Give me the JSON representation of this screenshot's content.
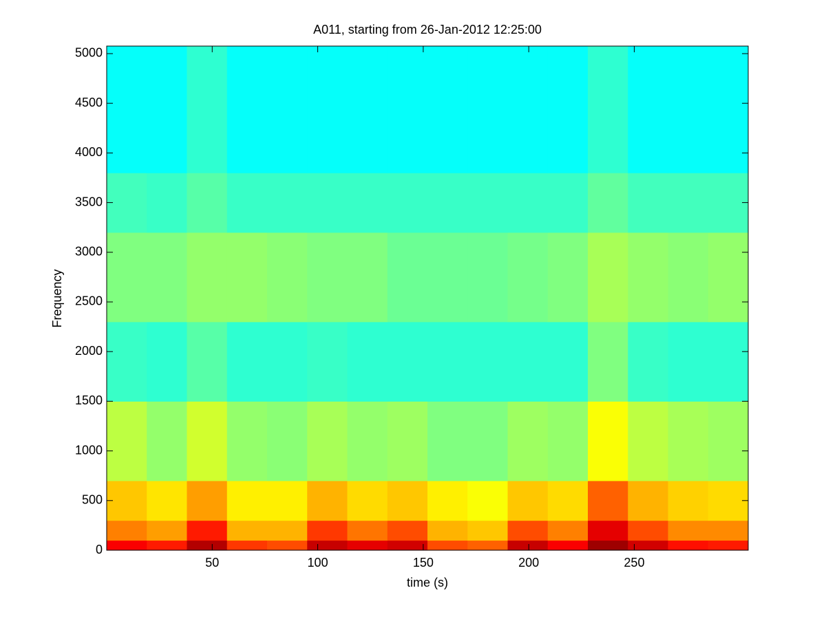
{
  "chart_data": {
    "type": "spectrogram",
    "title": "A011, starting from 26-Jan-2012 12:25:00",
    "xlabel": "time (s)",
    "ylabel": "Frequency",
    "xlim": [
      0,
      304
    ],
    "ylim": [
      0,
      5076
    ],
    "xticks": [
      50,
      100,
      150,
      200,
      250
    ],
    "yticks": [
      0,
      500,
      1000,
      1500,
      2000,
      2500,
      3000,
      3500,
      4000,
      4500,
      5000
    ],
    "colormap": "jet",
    "time_bins": [
      0,
      19,
      38,
      57,
      76,
      95,
      114,
      133,
      152,
      171,
      190,
      209,
      228,
      247,
      266,
      285,
      304
    ],
    "freq_bins": [
      0,
      100,
      300,
      700,
      1500,
      2300,
      3200,
      3800,
      5076
    ],
    "intensity": [
      [
        0.88,
        0.85,
        0.95,
        0.82,
        0.8,
        0.93,
        0.9,
        0.92,
        0.8,
        0.78,
        0.93,
        0.88,
        0.97,
        0.92,
        0.86,
        0.85
      ],
      [
        0.75,
        0.72,
        0.85,
        0.7,
        0.7,
        0.82,
        0.76,
        0.8,
        0.7,
        0.68,
        0.8,
        0.75,
        0.9,
        0.8,
        0.74,
        0.74
      ],
      [
        0.68,
        0.65,
        0.72,
        0.64,
        0.64,
        0.7,
        0.66,
        0.68,
        0.64,
        0.62,
        0.68,
        0.66,
        0.78,
        0.7,
        0.67,
        0.66
      ],
      [
        0.56,
        0.52,
        0.58,
        0.52,
        0.51,
        0.54,
        0.52,
        0.53,
        0.5,
        0.5,
        0.53,
        0.52,
        0.62,
        0.56,
        0.54,
        0.53
      ],
      [
        0.43,
        0.42,
        0.46,
        0.42,
        0.42,
        0.43,
        0.42,
        0.42,
        0.42,
        0.42,
        0.42,
        0.42,
        0.5,
        0.43,
        0.42,
        0.42
      ],
      [
        0.5,
        0.5,
        0.52,
        0.52,
        0.51,
        0.5,
        0.5,
        0.48,
        0.48,
        0.48,
        0.49,
        0.5,
        0.54,
        0.52,
        0.51,
        0.52
      ],
      [
        0.44,
        0.43,
        0.46,
        0.43,
        0.43,
        0.43,
        0.43,
        0.43,
        0.43,
        0.43,
        0.43,
        0.43,
        0.47,
        0.44,
        0.44,
        0.44
      ],
      [
        0.38,
        0.38,
        0.42,
        0.38,
        0.38,
        0.38,
        0.38,
        0.38,
        0.38,
        0.38,
        0.38,
        0.38,
        0.42,
        0.38,
        0.38,
        0.38
      ]
    ]
  }
}
